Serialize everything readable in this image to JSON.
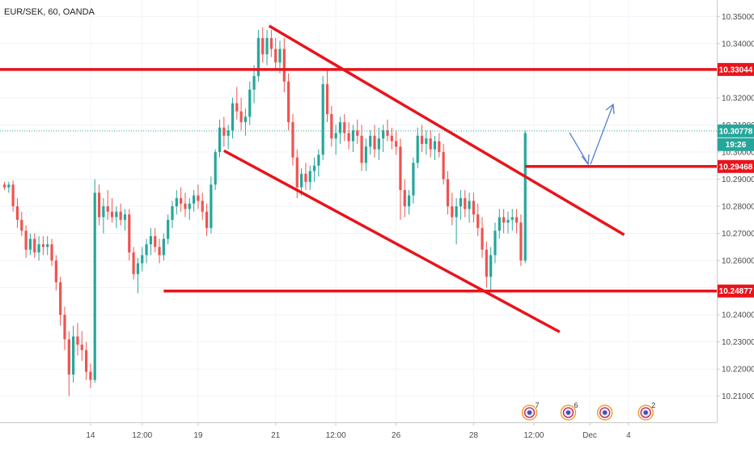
{
  "chart_data": {
    "type": "candlestick",
    "title": "EUR/SEK, 60, OANDA",
    "ylim": [
      10.205,
      10.355
    ],
    "y_ticks": [
      "10.35000",
      "10.34000",
      "10.33000",
      "10.32000",
      "10.31000",
      "10.30000",
      "10.29000",
      "10.28000",
      "10.27000",
      "10.26000",
      "10.25000",
      "10.24000",
      "10.23000",
      "10.22000",
      "10.21000"
    ],
    "x_ticks": [
      {
        "label": "14",
        "bar": 20
      },
      {
        "label": "12:00",
        "bar": 32
      },
      {
        "label": "19",
        "bar": 45
      },
      {
        "label": "21",
        "bar": 63
      },
      {
        "label": "12:00",
        "bar": 77
      },
      {
        "label": "26",
        "bar": 91
      },
      {
        "label": "28",
        "bar": 109
      },
      {
        "label": "12:00",
        "bar": 123
      },
      {
        "label": "Dec",
        "bar": 136
      },
      {
        "label": "4",
        "bar": 145
      }
    ],
    "price_labels": [
      {
        "value": 10.33044,
        "text": "10.33044",
        "color": "#e8141c"
      },
      {
        "value": 10.30778,
        "text": "10.30778",
        "color": "#26a69a"
      },
      {
        "value": 10.30275,
        "text": "19:26",
        "color": "#26a69a"
      },
      {
        "value": 10.29468,
        "text": "10.29468",
        "color": "#e8141c"
      },
      {
        "value": 10.24877,
        "text": "10.24877",
        "color": "#e8141c"
      }
    ],
    "horizontal_lines": [
      {
        "value": 10.33044,
        "bar_start": 0,
        "bar_end": 150,
        "color": "#e8141c"
      },
      {
        "value": 10.29468,
        "bar_start": 121,
        "bar_end": 150,
        "color": "#e8141c"
      },
      {
        "value": 10.24877,
        "bar_start": 37,
        "bar_end": 150,
        "color": "#e8141c"
      }
    ],
    "trend_lines": [
      {
        "from": [
          61.5,
          10.3465
        ],
        "to": [
          144,
          10.2695
        ],
        "color": "#e8141c"
      },
      {
        "from": [
          51,
          10.3005
        ],
        "to": [
          129,
          10.2337
        ],
        "color": "#e8141c"
      }
    ],
    "last_price_line": 10.30778,
    "event_badges": [
      {
        "bar": 122,
        "count": "7"
      },
      {
        "bar": 131,
        "count": "6"
      },
      {
        "bar": 139.5,
        "count": ""
      },
      {
        "bar": 149,
        "count": "2"
      }
    ],
    "ohlc": [
      [
        10.288,
        10.289,
        10.286,
        10.287
      ],
      [
        10.287,
        10.289,
        10.285,
        10.288
      ],
      [
        10.288,
        10.2895,
        10.278,
        10.28
      ],
      [
        10.28,
        10.283,
        10.272,
        10.275
      ],
      [
        10.275,
        10.278,
        10.269,
        10.271
      ],
      [
        10.271,
        10.273,
        10.261,
        10.264
      ],
      [
        10.264,
        10.27,
        10.262,
        10.268
      ],
      [
        10.268,
        10.27,
        10.261,
        10.263
      ],
      [
        10.263,
        10.269,
        10.26,
        10.266
      ],
      [
        10.266,
        10.269,
        10.262,
        10.265
      ],
      [
        10.265,
        10.269,
        10.262,
        10.266
      ],
      [
        10.266,
        10.268,
        10.258,
        10.26
      ],
      [
        10.26,
        10.262,
        10.249,
        10.252
      ],
      [
        10.252,
        10.254,
        10.236,
        10.24
      ],
      [
        10.24,
        10.243,
        10.227,
        10.231
      ],
      [
        10.231,
        10.234,
        10.21,
        10.218
      ],
      [
        10.218,
        10.236,
        10.215,
        10.232
      ],
      [
        10.232,
        10.237,
        10.225,
        10.229
      ],
      [
        10.229,
        10.234,
        10.223,
        10.227
      ],
      [
        10.227,
        10.23,
        10.216,
        10.219
      ],
      [
        10.219,
        10.222,
        10.213,
        10.216
      ],
      [
        10.216,
        10.29,
        10.215,
        10.285
      ],
      [
        10.285,
        10.288,
        10.273,
        10.276
      ],
      [
        10.276,
        10.283,
        10.27,
        10.28
      ],
      [
        10.28,
        10.286,
        10.275,
        10.278
      ],
      [
        10.278,
        10.283,
        10.274,
        10.276
      ],
      [
        10.276,
        10.28,
        10.272,
        10.278
      ],
      [
        10.278,
        10.281,
        10.273,
        10.275
      ],
      [
        10.275,
        10.279,
        10.271,
        10.277
      ],
      [
        10.277,
        10.279,
        10.26,
        10.263
      ],
      [
        10.263,
        10.265,
        10.253,
        10.255
      ],
      [
        10.255,
        10.261,
        10.248,
        10.259
      ],
      [
        10.259,
        10.265,
        10.256,
        10.262
      ],
      [
        10.262,
        10.268,
        10.259,
        10.266
      ],
      [
        10.266,
        10.272,
        10.262,
        10.269
      ],
      [
        10.269,
        10.272,
        10.263,
        10.265
      ],
      [
        10.265,
        10.268,
        10.259,
        10.262
      ],
      [
        10.262,
        10.27,
        10.26,
        10.268
      ],
      [
        10.268,
        10.277,
        10.266,
        10.275
      ],
      [
        10.275,
        10.282,
        10.272,
        10.28
      ],
      [
        10.28,
        10.286,
        10.277,
        10.283
      ],
      [
        10.283,
        10.287,
        10.278,
        10.281
      ],
      [
        10.281,
        10.285,
        10.276,
        10.279
      ],
      [
        10.279,
        10.283,
        10.275,
        10.281
      ],
      [
        10.281,
        10.286,
        10.278,
        10.284
      ],
      [
        10.284,
        10.288,
        10.279,
        10.282
      ],
      [
        10.282,
        10.285,
        10.275,
        10.278
      ],
      [
        10.278,
        10.281,
        10.269,
        10.272
      ],
      [
        10.272,
        10.291,
        10.27,
        10.288
      ],
      [
        10.288,
        10.301,
        10.286,
        10.3
      ],
      [
        10.3,
        10.312,
        10.298,
        10.309
      ],
      [
        10.309,
        10.313,
        10.302,
        10.306
      ],
      [
        10.306,
        10.31,
        10.301,
        10.308
      ],
      [
        10.308,
        10.32,
        10.305,
        10.318
      ],
      [
        10.318,
        10.324,
        10.312,
        10.315
      ],
      [
        10.315,
        10.32,
        10.308,
        10.311
      ],
      [
        10.311,
        10.316,
        10.306,
        10.313
      ],
      [
        10.313,
        10.326,
        10.31,
        10.323
      ],
      [
        10.323,
        10.332,
        10.318,
        10.328
      ],
      [
        10.328,
        10.345,
        10.326,
        10.342
      ],
      [
        10.342,
        10.346,
        10.333,
        10.336
      ],
      [
        10.336,
        10.345,
        10.332,
        10.342
      ],
      [
        10.342,
        10.345,
        10.335,
        10.338
      ],
      [
        10.338,
        10.342,
        10.33,
        10.333
      ],
      [
        10.333,
        10.341,
        10.329,
        10.338
      ],
      [
        10.338,
        10.342,
        10.322,
        10.326
      ],
      [
        10.326,
        10.329,
        10.308,
        10.311
      ],
      [
        10.311,
        10.314,
        10.295,
        10.298
      ],
      [
        10.298,
        10.301,
        10.283,
        10.287
      ],
      [
        10.287,
        10.294,
        10.284,
        10.292
      ],
      [
        10.292,
        10.296,
        10.286,
        10.289
      ],
      [
        10.289,
        10.295,
        10.286,
        10.293
      ],
      [
        10.293,
        10.298,
        10.289,
        10.295
      ],
      [
        10.295,
        10.301,
        10.291,
        10.299
      ],
      [
        10.299,
        10.328,
        10.297,
        10.325
      ],
      [
        10.325,
        10.33,
        10.311,
        10.314
      ],
      [
        10.314,
        10.317,
        10.302,
        10.305
      ],
      [
        10.305,
        10.31,
        10.299,
        10.307
      ],
      [
        10.307,
        10.313,
        10.303,
        10.311
      ],
      [
        10.311,
        10.314,
        10.304,
        10.307
      ],
      [
        10.307,
        10.311,
        10.301,
        10.304
      ],
      [
        10.304,
        10.31,
        10.3,
        10.308
      ],
      [
        10.308,
        10.312,
        10.303,
        10.306
      ],
      [
        10.306,
        10.31,
        10.293,
        10.296
      ],
      [
        10.296,
        10.305,
        10.293,
        10.302
      ],
      [
        10.302,
        10.308,
        10.299,
        10.306
      ],
      [
        10.306,
        10.31,
        10.298,
        10.301
      ],
      [
        10.301,
        10.309,
        10.297,
        10.305
      ],
      [
        10.305,
        10.31,
        10.3,
        10.308
      ],
      [
        10.308,
        10.312,
        10.304,
        10.306
      ],
      [
        10.306,
        10.309,
        10.301,
        10.304
      ],
      [
        10.304,
        10.308,
        10.299,
        10.302
      ],
      [
        10.302,
        10.305,
        10.275,
        10.286
      ],
      [
        10.286,
        10.29,
        10.276,
        10.28
      ],
      [
        10.28,
        10.286,
        10.277,
        10.284
      ],
      [
        10.284,
        10.298,
        10.281,
        10.296
      ],
      [
        10.296,
        10.309,
        10.294,
        10.306
      ],
      [
        10.306,
        10.31,
        10.3,
        10.303
      ],
      [
        10.303,
        10.308,
        10.299,
        10.305
      ],
      [
        10.305,
        10.308,
        10.298,
        10.301
      ],
      [
        10.301,
        10.306,
        10.297,
        10.304
      ],
      [
        10.304,
        10.307,
        10.298,
        10.3
      ],
      [
        10.3,
        10.303,
        10.288,
        10.29
      ],
      [
        10.29,
        10.293,
        10.277,
        10.28
      ],
      [
        10.28,
        10.285,
        10.273,
        10.276
      ],
      [
        10.276,
        10.283,
        10.266,
        10.28
      ],
      [
        10.28,
        10.286,
        10.275,
        10.283
      ],
      [
        10.283,
        10.286,
        10.276,
        10.279
      ],
      [
        10.279,
        10.285,
        10.274,
        10.282
      ],
      [
        10.282,
        10.285,
        10.274,
        10.277
      ],
      [
        10.277,
        10.281,
        10.269,
        10.272
      ],
      [
        10.272,
        10.276,
        10.261,
        10.264
      ],
      [
        10.264,
        10.267,
        10.25,
        10.254
      ],
      [
        10.254,
        10.265,
        10.249,
        10.262
      ],
      [
        10.262,
        10.274,
        10.259,
        10.271
      ],
      [
        10.271,
        10.279,
        10.268,
        10.276
      ],
      [
        10.276,
        10.279,
        10.27,
        10.274
      ],
      [
        10.274,
        10.278,
        10.27,
        10.275
      ],
      [
        10.275,
        10.279,
        10.271,
        10.276
      ],
      [
        10.276,
        10.279,
        10.27,
        10.274
      ],
      [
        10.274,
        10.277,
        10.258,
        10.26
      ],
      [
        10.26,
        10.308,
        10.259,
        10.307
      ]
    ]
  }
}
